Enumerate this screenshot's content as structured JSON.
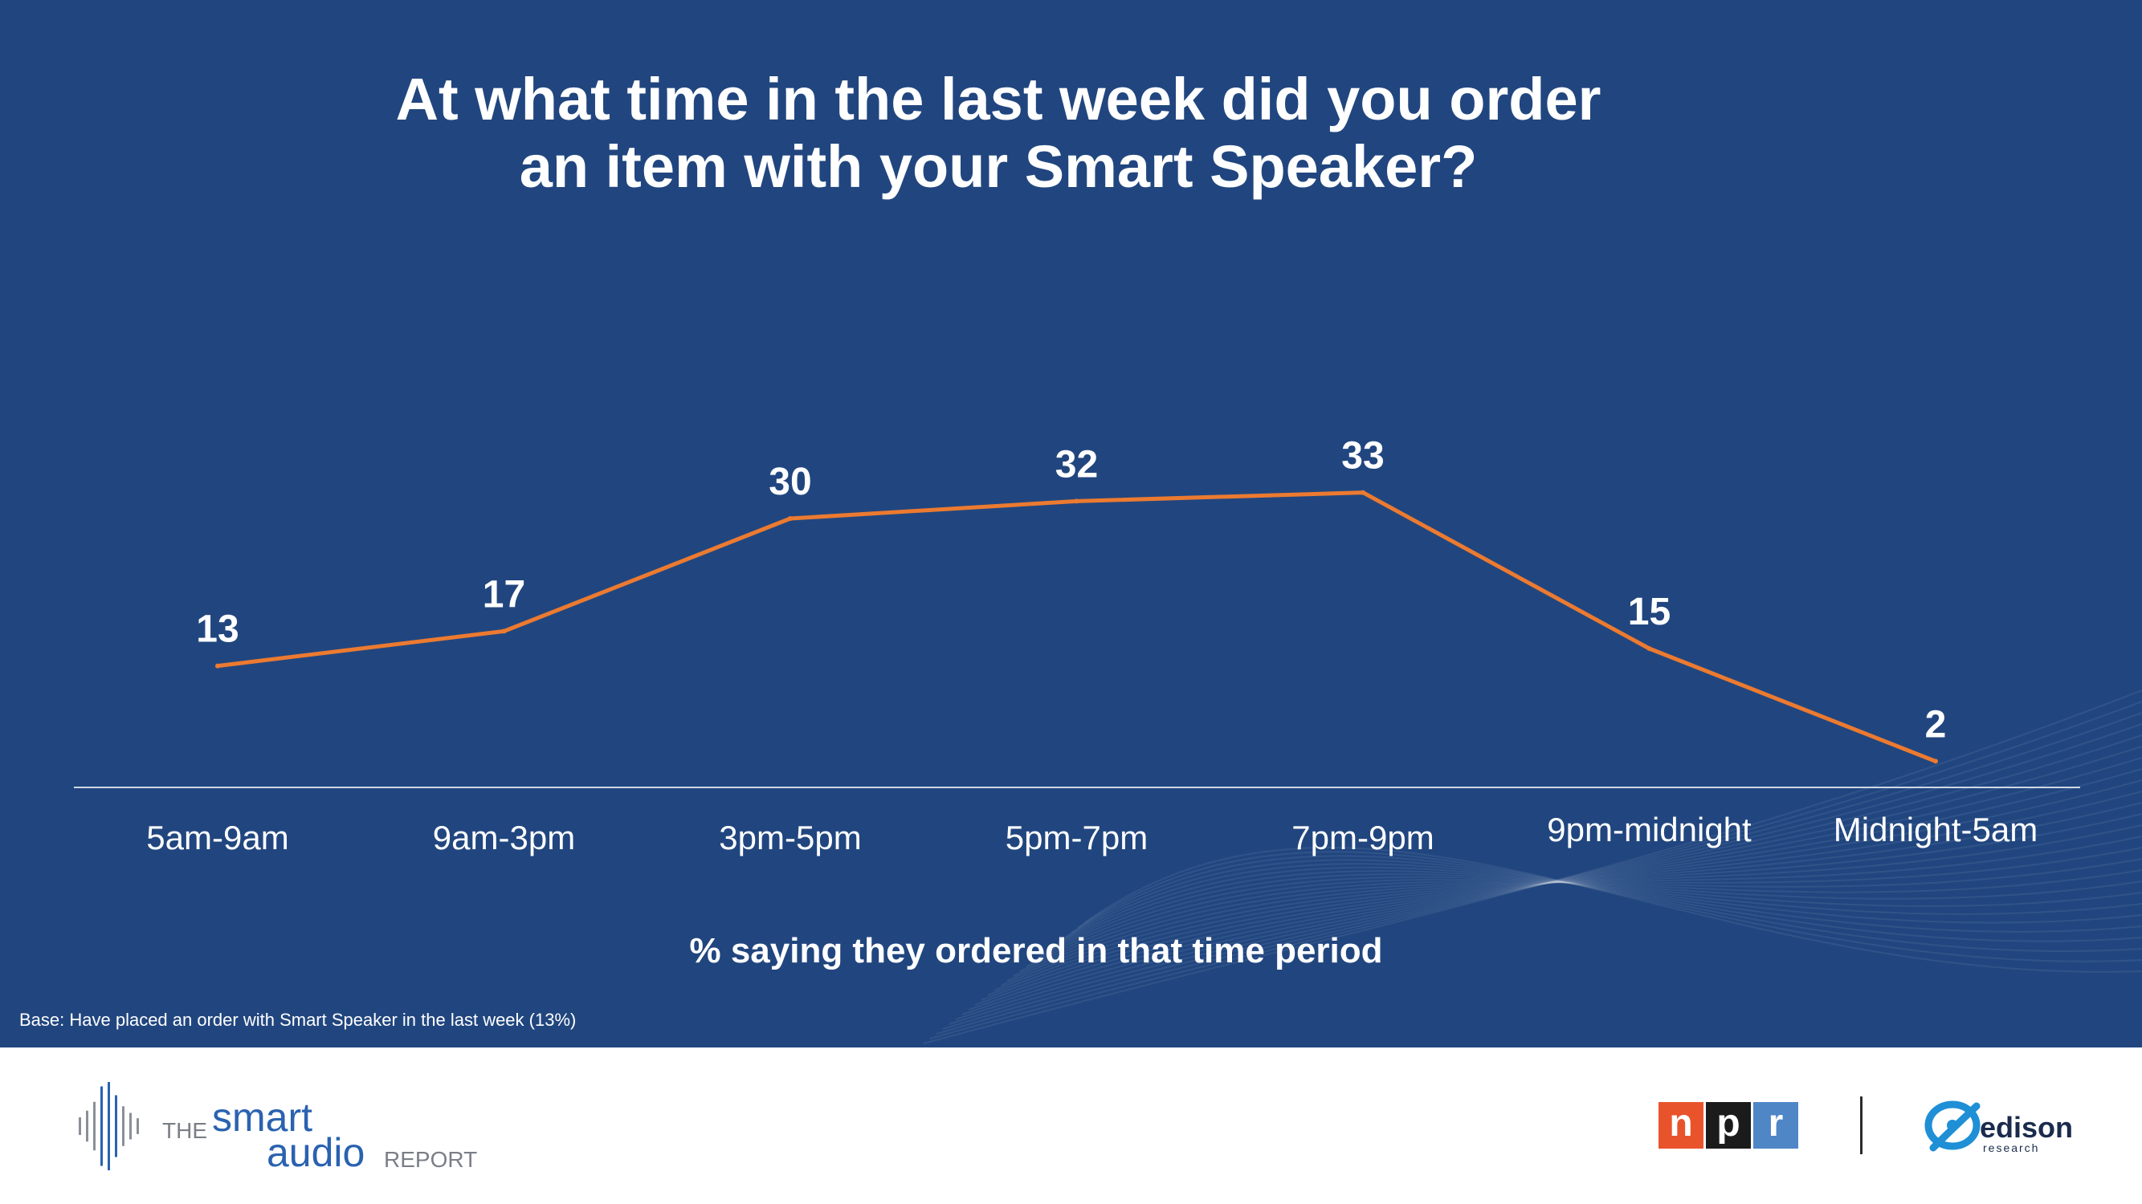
{
  "title_lines": [
    "At what time in the last week did you order",
    "an item with your Smart Speaker?"
  ],
  "chart_data": {
    "type": "line",
    "title": "At what time in the last week did you order an item with your Smart Speaker?",
    "categories": [
      "5am-9am",
      "9am-3pm",
      "3pm-5pm",
      "5pm-7pm",
      "7pm-9pm",
      "9pm-midnight",
      "Midnight-5am"
    ],
    "series": [
      {
        "values": [
          13,
          17,
          30,
          32,
          33,
          15,
          2
        ]
      }
    ],
    "xlabel": "% saying they ordered in that time period",
    "ylabel": "",
    "ylim": [
      0,
      40
    ],
    "grid": false,
    "legend": "none",
    "line_color": "#ec7a30",
    "data_labels": true
  },
  "base_note": "Base: Have placed an order with Smart Speaker in the last week (13%)",
  "footer": {
    "report_logo": {
      "the": "THE",
      "smart": "smart",
      "audio": "audio",
      "report": "REPORT"
    },
    "npr_letters": [
      "n",
      "p",
      "r"
    ],
    "npr_colors": [
      "#e8532c",
      "#1b1b1b",
      "#4f86c6"
    ],
    "edison": {
      "name": "edison",
      "sub": "research"
    }
  },
  "colors": {
    "background": "#21467f",
    "accent": "#ec7a30",
    "text": "#ffffff"
  }
}
